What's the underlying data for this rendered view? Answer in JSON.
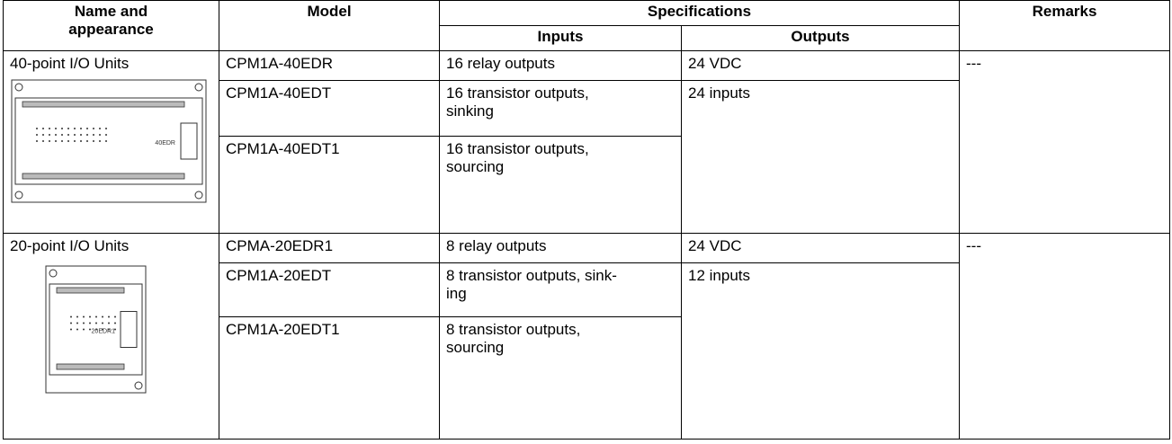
{
  "header": {
    "name_and_appearance": [
      "Name and",
      "appearance"
    ],
    "model": "Model",
    "specifications": "Specifications",
    "inputs": "Inputs",
    "outputs": "Outputs",
    "remarks": "Remarks"
  },
  "groups": [
    {
      "name": "40-point I/O Units",
      "rows": [
        {
          "model": "CPM1A-40EDR",
          "inputs": "16 relay outputs"
        },
        {
          "model": "CPM1A-40EDT",
          "inputs": "16 transistor outputs,\nsinking"
        },
        {
          "model": "CPM1A-40EDT1",
          "inputs": "16 transistor outputs,\nsourcing"
        }
      ],
      "outputs": [
        "24 VDC",
        "24 inputs"
      ],
      "remarks": "---",
      "image_label": "40EDR"
    },
    {
      "name": "20-point I/O Units",
      "rows": [
        {
          "model": "CPMA-20EDR1",
          "inputs": "8 relay outputs"
        },
        {
          "model": "CPM1A-20EDT",
          "inputs": "8 transistor outputs, sink-\ning"
        },
        {
          "model": "CPM1A-20EDT1",
          "inputs": "8 transistor outputs,\nsourcing"
        }
      ],
      "outputs": [
        "24 VDC",
        "12 inputs"
      ],
      "remarks": "---",
      "image_label": "20EDR1"
    }
  ]
}
